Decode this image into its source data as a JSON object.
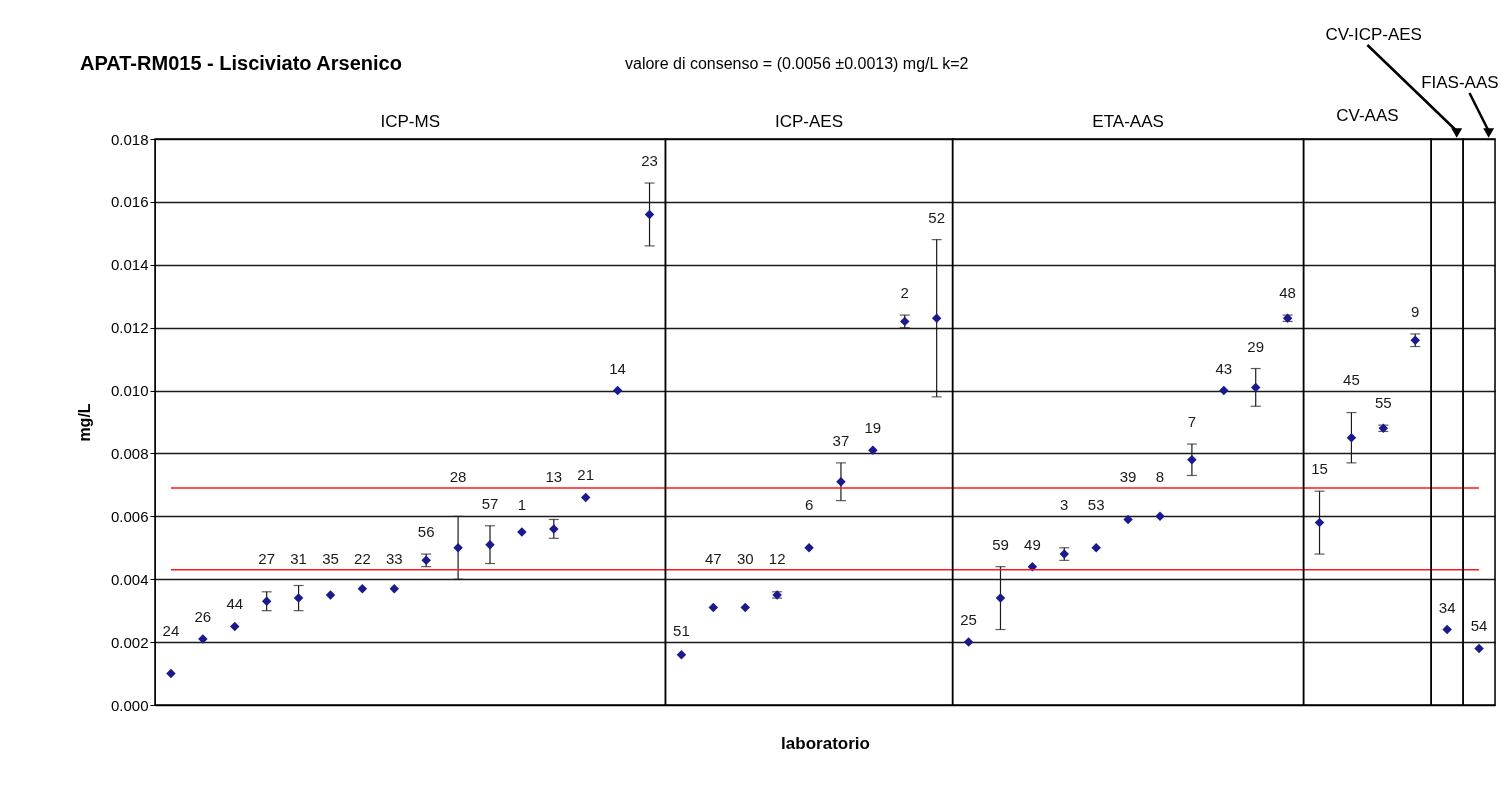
{
  "chart_data": {
    "type": "scatter",
    "title": "APAT-RM015 - Lisciviato  Arsenico",
    "subtitle": "valore di consenso = (0.0056 ±0.0013) mg/L        k=2",
    "xlabel": "laboratorio",
    "ylabel": "mg/L",
    "categories": [
      "24",
      "26",
      "44",
      "27",
      "31",
      "35",
      "22",
      "33",
      "56",
      "28",
      "57",
      "1",
      "13",
      "21",
      "14",
      "23",
      "51",
      "47",
      "30",
      "12",
      "6",
      "37",
      "19",
      "2",
      "52",
      "25",
      "59",
      "49",
      "3",
      "53",
      "39",
      "8",
      "7",
      "43",
      "29",
      "48",
      "15",
      "45",
      "55",
      "9",
      "34",
      "54"
    ],
    "series": [
      {
        "color": "#000080",
        "values": [
          0.001,
          0.0021,
          0.0025,
          0.0033,
          0.0034,
          0.0035,
          0.0037,
          0.0037,
          0.0046,
          0.005,
          0.0051,
          0.0055,
          0.0056,
          0.0066,
          0.01,
          0.0156,
          0.0016,
          0.0031,
          0.0031,
          0.0035,
          0.005,
          0.0071,
          0.0081,
          0.0122,
          0.0123,
          0.002,
          0.0034,
          0.0044,
          0.0048,
          0.005,
          0.0059,
          0.006,
          0.0078,
          0.01,
          0.0101,
          0.0123,
          0.0058,
          0.0085,
          0.0088,
          0.0116,
          0.0024,
          0.0018
        ],
        "errors": [
          null,
          null,
          null,
          0.0003,
          0.0004,
          null,
          null,
          null,
          0.0002,
          0.001,
          0.0006,
          null,
          0.0003,
          null,
          null,
          0.001,
          null,
          null,
          null,
          0.0001,
          null,
          0.0006,
          null,
          0.0002,
          0.0025,
          null,
          0.001,
          null,
          0.0002,
          null,
          null,
          null,
          0.0005,
          null,
          0.0006,
          0.0001,
          0.001,
          0.0008,
          0.0001,
          0.0002,
          null,
          null
        ]
      }
    ],
    "ylim": [
      0,
      0.018
    ],
    "yticks": [
      {
        "value": 0,
        "label": "0.000"
      },
      {
        "value": 0.002,
        "label": "0.002"
      },
      {
        "value": 0.004,
        "label": "0.004"
      },
      {
        "value": 0.006,
        "label": "0.006"
      },
      {
        "value": 0.008,
        "label": "0.008"
      },
      {
        "value": 0.01,
        "label": "0.010"
      },
      {
        "value": 0.012,
        "label": "0.012"
      },
      {
        "value": 0.014,
        "label": "0.014"
      },
      {
        "value": 0.016,
        "label": "0.016"
      },
      {
        "value": 0.018,
        "label": "0.018"
      }
    ],
    "ref_lines": [
      {
        "axis": "y",
        "value": 0.0069,
        "color": "#ff0000"
      },
      {
        "axis": "y",
        "value": 0.0043,
        "color": "#ff0000"
      }
    ],
    "bands": [
      {
        "axis": "x",
        "from": "24",
        "to": "23",
        "label": "ICP-MS"
      },
      {
        "axis": "x",
        "from": "51",
        "to": "52",
        "label": "ICP-AES"
      },
      {
        "axis": "x",
        "from": "25",
        "to": "48",
        "label": "ETA-AAS"
      },
      {
        "axis": "x",
        "from": "15",
        "to": "9",
        "label": "CV-AAS"
      },
      {
        "axis": "x",
        "from": "34",
        "to": "34",
        "label": "CV-ICP-AES"
      },
      {
        "axis": "x",
        "from": "54",
        "to": "54",
        "label": "FIAS-AAS"
      }
    ],
    "grid": "y",
    "legend": false,
    "marker": "diamond",
    "tick_labels": "y"
  }
}
